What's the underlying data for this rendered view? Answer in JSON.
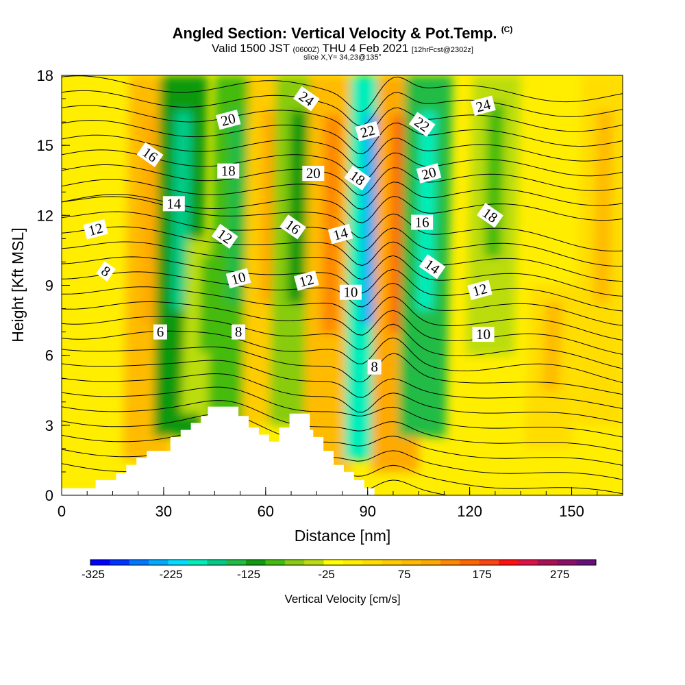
{
  "title": {
    "main": "Angled Section: Vertical Velocity & Pot.Temp.",
    "main_mark": "(C)",
    "valid_prefix": "Valid 1500 JST",
    "valid_utc": "(0600Z)",
    "valid_date": "THU 4 Feb 2021",
    "forecast": "[12hrFcst@2302z]",
    "slice": "slice X,Y= 34,23@135°"
  },
  "chart_data": {
    "type": "heatmap",
    "xlabel": "Distance [nm]",
    "ylabel": "Height [Kft MSL]",
    "xlim": [
      0,
      165
    ],
    "ylim": [
      0,
      18
    ],
    "x_ticks": [
      "0",
      "30",
      "60",
      "90",
      "120",
      "150"
    ],
    "y_ticks": [
      "0",
      "3",
      "6",
      "9",
      "12",
      "15",
      "18"
    ],
    "x_tick_values": [
      0,
      30,
      60,
      90,
      120,
      150
    ],
    "y_tick_values": [
      0,
      3,
      6,
      9,
      12,
      15,
      18
    ],
    "colorbar": {
      "label": "Vertical Velocity [cm/s]",
      "tick_labels": [
        "-325",
        "-225",
        "-125",
        "-25",
        "75",
        "175",
        "275"
      ],
      "tick_values": [
        -325,
        -225,
        -125,
        -25,
        75,
        175,
        275
      ],
      "min": -325,
      "max": 300,
      "step": 25,
      "colors": [
        "#0000ff",
        "#0033ff",
        "#0077ff",
        "#00aaff",
        "#00ddff",
        "#00eebb",
        "#00cc88",
        "#22bb44",
        "#119911",
        "#44bb11",
        "#88cc11",
        "#bbdd11",
        "#ffff00",
        "#ffee00",
        "#ffdd00",
        "#ffcc00",
        "#ffbb00",
        "#ffaa00",
        "#ff8800",
        "#ff6600",
        "#ff4411",
        "#ff1111",
        "#dd1144",
        "#aa1155",
        "#881166",
        "#661177"
      ]
    },
    "velocity_bands": [
      {
        "x": 25,
        "value": 80,
        "bottom": 1.5,
        "top": 18
      },
      {
        "x": 34,
        "value": -120,
        "bottom": 2.5,
        "top": 18
      },
      {
        "x": 42,
        "value": -50,
        "bottom": 3.5,
        "top": 11
      },
      {
        "x": 50,
        "value": -90,
        "bottom": 3.0,
        "top": 18
      },
      {
        "x": 60,
        "value": 60,
        "bottom": 3.0,
        "top": 18
      },
      {
        "x": 68,
        "value": -70,
        "bottom": 3.0,
        "top": 18
      },
      {
        "x": 78,
        "value": 90,
        "bottom": 1.0,
        "top": 18
      },
      {
        "x": 90,
        "value": -180,
        "bottom": 1.5,
        "top": 18
      },
      {
        "x": 98,
        "value": 120,
        "bottom": 1.0,
        "top": 18
      },
      {
        "x": 106,
        "value": -130,
        "bottom": 2.5,
        "top": 18
      },
      {
        "x": 126,
        "value": -40,
        "bottom": 6.0,
        "top": 18
      },
      {
        "x": 143,
        "value": 40,
        "bottom": 2.0,
        "top": 9
      },
      {
        "x": 158,
        "value": 40,
        "bottom": 3.0,
        "top": 18
      }
    ],
    "theta_contour_labels": [
      {
        "text": "6",
        "x": 29,
        "y": 7.0
      },
      {
        "text": "8",
        "x": 13,
        "y": 9.6
      },
      {
        "text": "12",
        "x": 10,
        "y": 11.4
      },
      {
        "text": "14",
        "x": 33,
        "y": 12.5
      },
      {
        "text": "16",
        "x": 26,
        "y": 14.6
      },
      {
        "text": "20",
        "x": 49,
        "y": 16.1
      },
      {
        "text": "18",
        "x": 49,
        "y": 13.9
      },
      {
        "text": "12",
        "x": 48,
        "y": 11.1
      },
      {
        "text": "10",
        "x": 52,
        "y": 9.3
      },
      {
        "text": "8",
        "x": 52,
        "y": 7.0
      },
      {
        "text": "16",
        "x": 68,
        "y": 11.5
      },
      {
        "text": "12",
        "x": 72,
        "y": 9.2
      },
      {
        "text": "20",
        "x": 74,
        "y": 13.8
      },
      {
        "text": "24",
        "x": 72,
        "y": 17.0
      },
      {
        "text": "14",
        "x": 82,
        "y": 11.2
      },
      {
        "text": "10",
        "x": 85,
        "y": 8.7
      },
      {
        "text": "18",
        "x": 87,
        "y": 13.6
      },
      {
        "text": "22",
        "x": 90,
        "y": 15.6
      },
      {
        "text": "8",
        "x": 92,
        "y": 5.5
      },
      {
        "text": "22",
        "x": 106,
        "y": 15.9
      },
      {
        "text": "20",
        "x": 108,
        "y": 13.8
      },
      {
        "text": "16",
        "x": 106,
        "y": 11.7
      },
      {
        "text": "14",
        "x": 109,
        "y": 9.8
      },
      {
        "text": "12",
        "x": 123,
        "y": 8.8
      },
      {
        "text": "10",
        "x": 124,
        "y": 6.9
      },
      {
        "text": "18",
        "x": 126,
        "y": 12.0
      },
      {
        "text": "24",
        "x": 124,
        "y": 16.7
      }
    ],
    "terrain": [
      [
        0,
        0.3
      ],
      [
        10,
        0.3
      ],
      [
        10,
        0.65
      ],
      [
        16,
        0.65
      ],
      [
        16,
        0.95
      ],
      [
        19,
        0.95
      ],
      [
        19,
        1.3
      ],
      [
        22,
        1.3
      ],
      [
        22,
        1.6
      ],
      [
        25,
        1.6
      ],
      [
        25,
        1.9
      ],
      [
        32,
        1.9
      ],
      [
        32,
        2.5
      ],
      [
        35,
        2.5
      ],
      [
        35,
        2.8
      ],
      [
        38,
        2.8
      ],
      [
        38,
        3.1
      ],
      [
        41,
        3.1
      ],
      [
        41,
        3.4
      ],
      [
        43,
        3.4
      ],
      [
        43,
        3.8
      ],
      [
        52,
        3.8
      ],
      [
        52,
        3.4
      ],
      [
        55,
        3.4
      ],
      [
        55,
        2.9
      ],
      [
        58,
        2.9
      ],
      [
        58,
        2.6
      ],
      [
        61,
        2.6
      ],
      [
        61,
        2.3
      ],
      [
        64,
        2.3
      ],
      [
        64,
        2.9
      ],
      [
        67,
        2.9
      ],
      [
        67,
        3.5
      ],
      [
        73,
        3.5
      ],
      [
        73,
        2.8
      ],
      [
        74,
        2.8
      ],
      [
        74,
        2.5
      ],
      [
        77,
        2.5
      ],
      [
        77,
        1.9
      ],
      [
        80,
        1.9
      ],
      [
        80,
        1.3
      ],
      [
        83,
        1.3
      ],
      [
        83,
        1.0
      ],
      [
        86,
        1.0
      ],
      [
        86,
        0.65
      ],
      [
        89,
        0.65
      ],
      [
        89,
        0.3
      ],
      [
        92,
        0.3
      ]
    ]
  }
}
